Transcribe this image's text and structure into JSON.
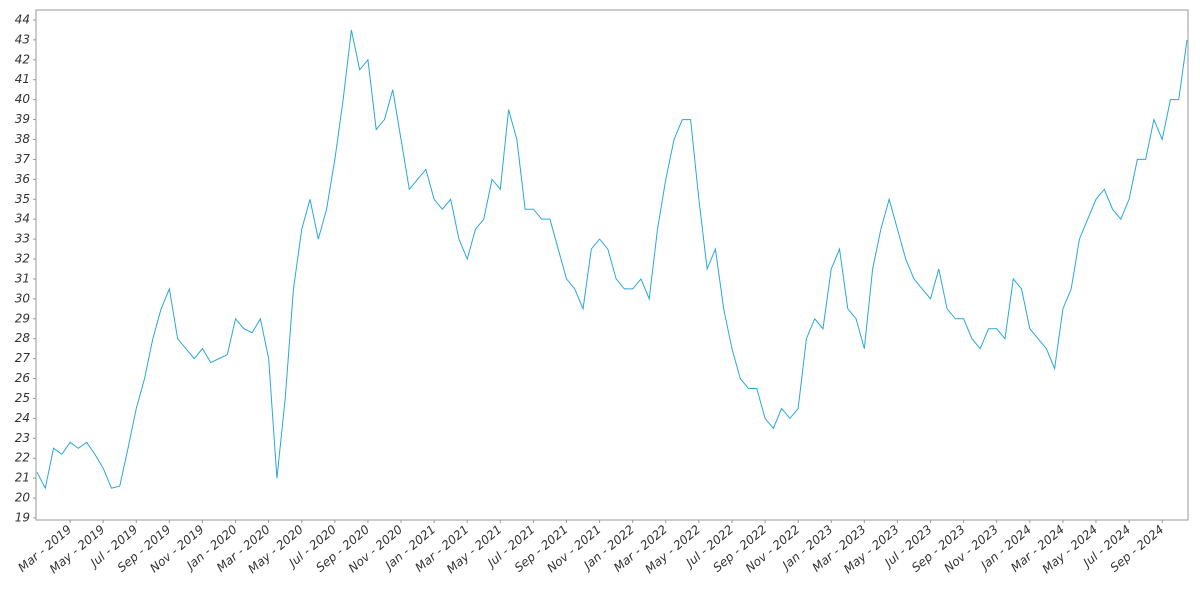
{
  "chart_data": {
    "type": "line",
    "color": "#29a8dc",
    "categories": [
      null,
      null,
      null,
      null,
      "Mar - 2019",
      null,
      null,
      null,
      "May - 2019",
      null,
      null,
      null,
      "Jul - 2019",
      null,
      null,
      null,
      "Sep - 2019",
      null,
      null,
      null,
      "Nov - 2019",
      null,
      null,
      null,
      "Jan - 2020",
      null,
      null,
      null,
      "Mar - 2020",
      null,
      null,
      null,
      "May - 2020",
      null,
      null,
      null,
      "Jul - 2020",
      null,
      null,
      null,
      "Sep - 2020",
      null,
      null,
      null,
      "Nov - 2020",
      null,
      null,
      null,
      "Jan - 2021",
      null,
      null,
      null,
      "Mar - 2021",
      null,
      null,
      null,
      "May - 2021",
      null,
      null,
      null,
      "Jul - 2021",
      null,
      null,
      null,
      "Sep - 2021",
      null,
      null,
      null,
      "Nov - 2021",
      null,
      null,
      null,
      "Jan - 2022",
      null,
      null,
      null,
      "Mar - 2022",
      null,
      null,
      null,
      "May - 2022",
      null,
      null,
      null,
      "Jul - 2022",
      null,
      null,
      null,
      "Sep - 2022",
      null,
      null,
      null,
      "Nov - 2022",
      null,
      null,
      null,
      "Jan - 2023",
      null,
      null,
      null,
      "Mar - 2023",
      null,
      null,
      null,
      "May - 2023",
      null,
      null,
      null,
      "Jul - 2023",
      null,
      null,
      null,
      "Sep - 2023",
      null,
      null,
      null,
      "Nov - 2023",
      null,
      null,
      null,
      "Jan - 2024",
      null,
      null,
      null,
      "Mar - 2024",
      null,
      null,
      null,
      "May - 2024",
      null,
      null,
      null,
      "Jul - 2024",
      null,
      null,
      null,
      "Sep - 2024",
      null,
      null,
      null
    ],
    "values": [
      21.3,
      20.5,
      22.5,
      22.2,
      22.8,
      22.5,
      22.8,
      22.2,
      21.5,
      20.5,
      20.6,
      22.5,
      24.5,
      26,
      28,
      29.5,
      30.5,
      28,
      27.5,
      27,
      27.5,
      26.8,
      27,
      27.2,
      29,
      28.5,
      28.3,
      29,
      27,
      21,
      25,
      30.5,
      33.5,
      35,
      33,
      34.5,
      37,
      40,
      43.5,
      41.5,
      42,
      38.5,
      39,
      40.5,
      38,
      35.5,
      36,
      36.5,
      35,
      34.5,
      35,
      33,
      32,
      33.5,
      34,
      36,
      35.5,
      39.5,
      38,
      34.5,
      34.5,
      34,
      34,
      32.5,
      31,
      30.5,
      29.5,
      32.5,
      33,
      32.5,
      31,
      30.5,
      30.5,
      31,
      30,
      33.5,
      36,
      38,
      39,
      39,
      35,
      31.5,
      32.5,
      29.5,
      27.5,
      26,
      25.5,
      25.5,
      24,
      23.5,
      24.5,
      24,
      24.5,
      28,
      29,
      28.5,
      31.5,
      32.5,
      29.5,
      29,
      27.5,
      31.5,
      33.5,
      35,
      33.5,
      32,
      31,
      30.5,
      30,
      31.5,
      29.5,
      29,
      29,
      28,
      27.5,
      28.5,
      28.5,
      28,
      31,
      30.5,
      28.5,
      28,
      27.5,
      26.5,
      29.5,
      30.5,
      33,
      34,
      35,
      35.5,
      34.5,
      34,
      35,
      37,
      37,
      39,
      38,
      40,
      40,
      43
    ],
    "ylim": [
      18.9,
      44.5
    ],
    "yticks": [
      19,
      20,
      21,
      22,
      23,
      24,
      25,
      26,
      27,
      28,
      29,
      30,
      31,
      32,
      33,
      34,
      35,
      36,
      37,
      38,
      39,
      40,
      41,
      42,
      43,
      44
    ]
  }
}
